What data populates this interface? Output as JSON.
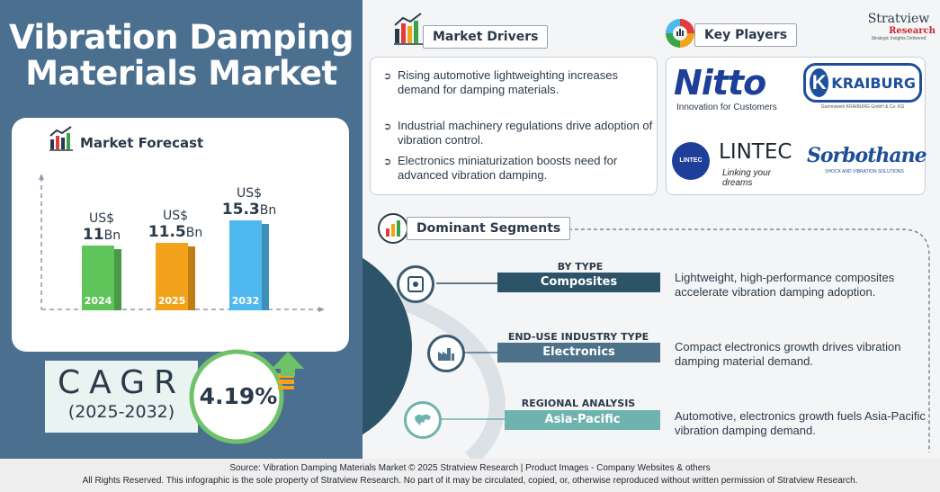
{
  "title": {
    "line1": "Vibration Damping",
    "line2": "Materials Market"
  },
  "forecast": {
    "heading": "Market Forecast",
    "bars": [
      {
        "year": "2024",
        "currency": "US$",
        "value": "11",
        "unit": "Bn",
        "amount": 11,
        "color": "#5fc45a"
      },
      {
        "year": "2025",
        "currency": "US$",
        "value": "11.5",
        "unit": "Bn",
        "amount": 11.5,
        "color": "#f2a31b"
      },
      {
        "year": "2032",
        "currency": "US$",
        "value": "15.3",
        "unit": "Bn",
        "amount": 15.3,
        "color": "#4fb8ee"
      }
    ]
  },
  "cagr": {
    "label": "CAGR",
    "period": "(2025-2032)",
    "value": "4.19%"
  },
  "drivers": {
    "heading": "Market Drivers",
    "items": [
      "Rising automotive lightweighting increases demand for damping materials.",
      "Industrial machinery regulations drive adoption of vibration control.",
      "Electronics miniaturization boosts need for advanced vibration damping."
    ]
  },
  "players": {
    "heading": "Key Players",
    "nitto": {
      "name": "Nitto",
      "tagline": "Innovation for Customers"
    },
    "kraiburg": {
      "mark": "K",
      "name": "KRAIBURG",
      "tagline": "Gummiwerk KRAIBURG GmbH & Co. KG"
    },
    "lintec": {
      "badge": "LINTEC",
      "name": "LINTEC",
      "tagline": "Linking your dreams"
    },
    "sorbothane": {
      "name": "Sorbothane",
      "tagline": "SHOCK AND VIBRATION SOLUTIONS"
    }
  },
  "brand": {
    "name": "Stratview",
    "sub": "Research",
    "tagline": "Strategic Insights Delivered"
  },
  "segments": {
    "heading": "Dominant Segments",
    "items": [
      {
        "category": "BY TYPE",
        "value": "Composites",
        "desc": "Lightweight, high-performance composites accelerate vibration damping adoption.",
        "color": "#2d5368"
      },
      {
        "category": "END-USE INDUSTRY TYPE",
        "value": "Electronics",
        "desc": "Compact electronics growth drives vibration damping material demand.",
        "color": "#4d7188"
      },
      {
        "category": "REGIONAL ANALYSIS",
        "value": "Asia-Pacific",
        "desc": "Automotive, electronics growth fuels Asia-Pacific vibration damping demand.",
        "color": "#6fb3ae"
      }
    ]
  },
  "footer": {
    "line1": "Source:  Vibration Damping Materials Market © 2025 Stratview Research | Product Images  - Company Websites & others",
    "line2": "All Rights Reserved. This infographic is the sole property of Stratview Research. No part of it may be circulated, copied, or, otherwise reproduced without written permission of Stratview Research."
  }
}
